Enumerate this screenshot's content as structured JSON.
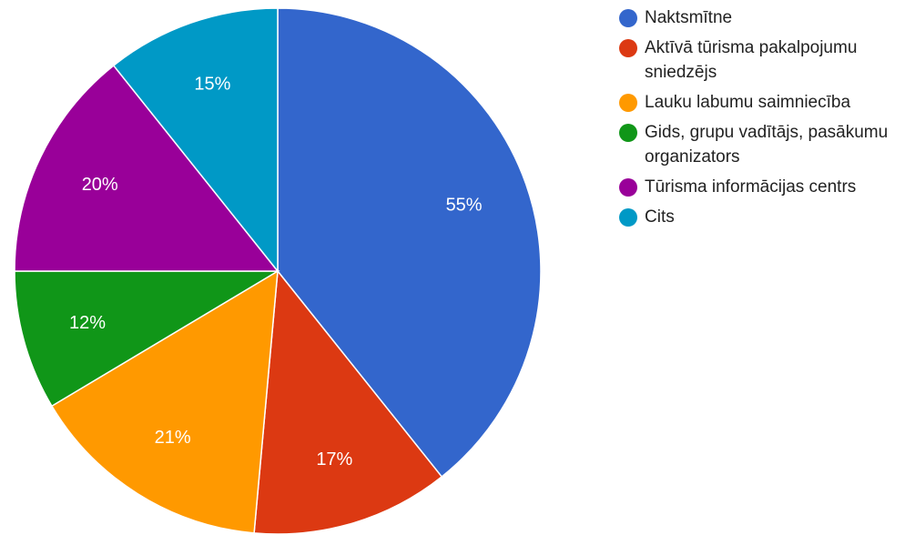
{
  "chart_data": {
    "type": "pie",
    "categories": [
      "Naktsmītne",
      "Aktīvā tūrisma pakalpojumu sniedzējs",
      "Lauku labumu saimniecība",
      "Gids, grupu vadītājs, pasākumu organizators",
      "Tūrisma informācijas centrs",
      "Cits"
    ],
    "values": [
      55,
      17,
      21,
      12,
      20,
      15
    ],
    "value_labels": [
      "55%",
      "17%",
      "21%",
      "12%",
      "20%",
      "15%"
    ],
    "colors": [
      "#3366cc",
      "#dc3912",
      "#ff9900",
      "#109618",
      "#990099",
      "#0099c6"
    ],
    "legend": "right"
  }
}
